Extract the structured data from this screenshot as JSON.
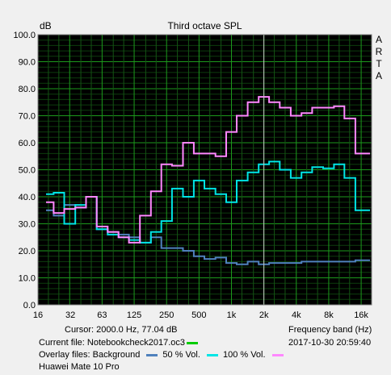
{
  "chart_data": {
    "type": "line",
    "title": "Third octave SPL",
    "ylabel": "dB",
    "xlabel": "Frequency band (Hz)",
    "ylim": [
      0,
      100
    ],
    "y_ticks": [
      "0.0",
      "10.0",
      "20.0",
      "30.0",
      "40.0",
      "50.0",
      "60.0",
      "70.0",
      "80.0",
      "90.0",
      "100.0"
    ],
    "x_tick_labels": [
      "16",
      "32",
      "63",
      "125",
      "250",
      "500",
      "1k",
      "2k",
      "4k",
      "8k",
      "16k"
    ],
    "x_tick_values": [
      16,
      32,
      63,
      125,
      250,
      500,
      1000,
      2000,
      4000,
      8000,
      16000
    ],
    "bands": [
      20,
      25,
      31.5,
      40,
      50,
      63,
      80,
      100,
      125,
      160,
      200,
      250,
      315,
      400,
      500,
      630,
      800,
      1000,
      1250,
      1600,
      2000,
      2500,
      3150,
      4000,
      5000,
      6300,
      8000,
      10000,
      12500,
      16000,
      20000
    ],
    "grid": true,
    "cursor_x": 2000,
    "side_label": [
      "A",
      "R",
      "T",
      "A"
    ],
    "series": [
      {
        "key": "background",
        "color": "#4f81bd",
        "values": [
          35,
          33,
          37,
          36,
          40,
          28,
          27,
          26,
          25,
          23,
          25,
          21,
          21,
          20,
          18,
          17,
          17.5,
          15.5,
          15,
          16,
          15,
          15.5,
          15.5,
          15.5,
          16,
          16,
          16,
          16,
          16,
          16.5,
          16.5
        ]
      },
      {
        "key": "vol50",
        "color": "#00e5e5",
        "values": [
          41,
          41.5,
          30,
          37,
          40,
          28,
          26,
          25,
          24,
          23,
          27,
          31,
          43,
          40,
          46,
          43,
          41,
          38,
          46,
          49,
          52,
          53,
          50,
          47,
          49,
          51,
          50.5,
          52,
          47,
          35,
          35
        ]
      },
      {
        "key": "vol100",
        "color": "#ff88ff",
        "values": [
          38,
          34,
          35.5,
          36,
          40,
          29,
          27,
          25,
          23,
          33,
          42,
          52,
          51.5,
          60,
          56,
          56,
          55,
          64,
          70,
          75,
          77,
          75,
          73,
          70,
          71,
          73,
          73,
          73.5,
          69,
          56,
          56
        ]
      }
    ]
  },
  "status": {
    "cursor": "Cursor:  2000.0 Hz, 77.04 dB",
    "freq_band": "Frequency band (Hz)",
    "current_file_label": "Current file: Notebookcheck2017.oc3",
    "current_file_color": "#00cc00",
    "overlay_label": "Overlay files: Background",
    "overlay_50": "50 % Vol.",
    "overlay_100": "100 % Vol.",
    "timestamp": "2017-10-30  20:59:40",
    "device": "Huawei Mate 10 Pro"
  }
}
